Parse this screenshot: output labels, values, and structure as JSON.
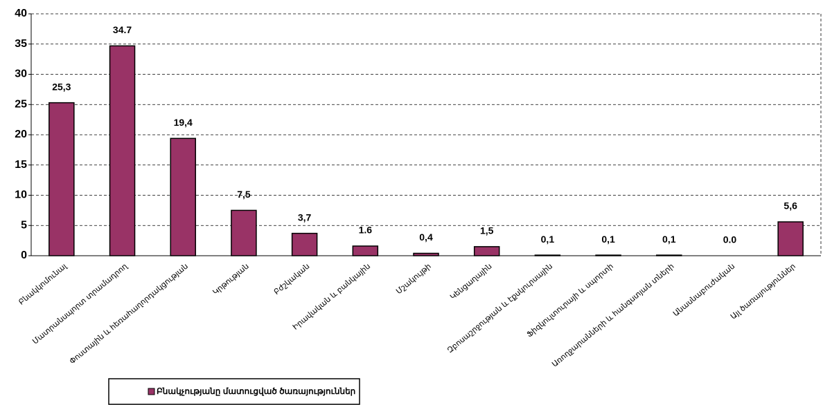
{
  "chart_data": {
    "type": "bar",
    "categories": [
      "Բնակկոմունալ",
      "Մատրանսպորտ տրամադրող",
      "Փոստային և հեռահաղորդակցության",
      "Կրթության",
      "Բժշկական",
      "Իրավական և բանկային",
      "Մշակույթի",
      "Կենցաղային",
      "Զբոսաշրջության և էքսկուրսային",
      "Ֆիզկուլտուրայի և սպորտի",
      "Առողջարանների և հանգստյան տների",
      "Անասնաբուժական",
      "Այլ ծառայություններ"
    ],
    "series": [
      {
        "name": "Բնակչությանը մատուցված ծառայություններ",
        "color": "#993366",
        "values": [
          25.3,
          34.7,
          19.4,
          7.5,
          3.7,
          1.6,
          0.4,
          1.5,
          0.1,
          0.1,
          0.1,
          0.0,
          5.6
        ],
        "value_labels": [
          "25,3",
          "34.7",
          "19,4",
          "7,5",
          "3,7",
          "1.6",
          "0,4",
          "1,5",
          "0,1",
          "0,1",
          "0,1",
          "0.0",
          "5,6"
        ]
      }
    ],
    "ylim": [
      0,
      40
    ],
    "yticks": [
      0,
      5,
      10,
      15,
      20,
      25,
      30,
      35,
      40
    ],
    "grid": true,
    "legend": "bottom-left"
  }
}
